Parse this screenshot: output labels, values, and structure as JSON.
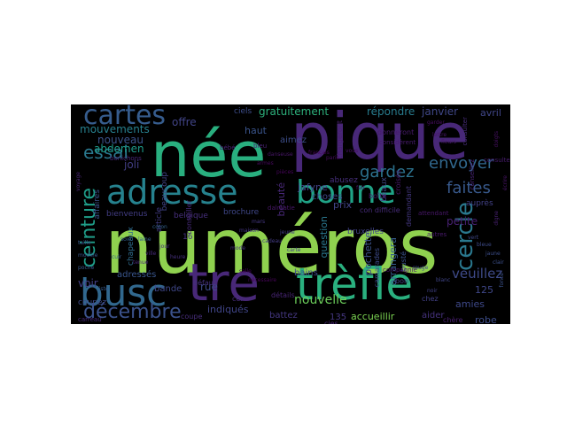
{
  "wordcloud": {
    "background": "#000000",
    "words": [
      {
        "text": "numéros",
        "color": "#8fd14f"
      },
      {
        "text": "née",
        "color": "#29af7f"
      },
      {
        "text": "pique",
        "color": "#482878"
      },
      {
        "text": "trèfle",
        "color": "#2ab07f"
      },
      {
        "text": "tre",
        "color": "#482878"
      },
      {
        "text": "adresse",
        "color": "#26828e"
      },
      {
        "text": "bonne",
        "color": "#20a386"
      },
      {
        "text": "busc",
        "color": "#31688e"
      },
      {
        "text": "cartes",
        "color": "#365c8d"
      },
      {
        "text": "ceinture",
        "color": "#1f9e89"
      },
      {
        "text": "cercle",
        "color": "#2a788e"
      },
      {
        "text": "décembre",
        "color": "#3b528b"
      },
      {
        "text": "essai",
        "color": "#2a788e"
      },
      {
        "text": "envoyer",
        "color": "#31688e"
      },
      {
        "text": "faites",
        "color": "#38598c"
      },
      {
        "text": "gardez",
        "color": "#2c728e"
      },
      {
        "text": "nouvelle",
        "color": "#6ccd5a"
      },
      {
        "text": "veuillez",
        "color": "#3e4a89"
      },
      {
        "text": "gratuitement",
        "color": "#2db27d"
      },
      {
        "text": "répondre",
        "color": "#287c8e"
      },
      {
        "text": "janvier",
        "color": "#3f4788"
      },
      {
        "text": "avril",
        "color": "#404688"
      },
      {
        "text": "mouvements",
        "color": "#27808e"
      },
      {
        "text": "nouveau",
        "color": "#3b528b"
      },
      {
        "text": "abdomen",
        "color": "#1e9b8a"
      },
      {
        "text": "joli",
        "color": "#433e85"
      },
      {
        "text": "offre",
        "color": "#414487"
      },
      {
        "text": "haut",
        "color": "#3a548c"
      },
      {
        "text": "aimez",
        "color": "#3d4e8a"
      },
      {
        "text": "ciels",
        "color": "#3d4d8a"
      },
      {
        "text": "jafyne",
        "color": "#424086"
      },
      {
        "text": "choses",
        "color": "#3f4889"
      },
      {
        "text": "prix",
        "color": "#414487"
      },
      {
        "text": "petite",
        "color": "#482173"
      },
      {
        "text": "question",
        "color": "#2a778e"
      },
      {
        "text": "pochette",
        "color": "#3b528b"
      },
      {
        "text": "arrangera",
        "color": "#365d8d"
      },
      {
        "text": "bains",
        "color": "#3d4e8a"
      },
      {
        "text": "rue",
        "color": "#3e4a89"
      },
      {
        "text": "bande",
        "color": "#3f4788"
      },
      {
        "text": "indiqués",
        "color": "#404588"
      },
      {
        "text": "battez",
        "color": "#453882"
      },
      {
        "text": "135",
        "color": "#453781"
      },
      {
        "text": "accueillir",
        "color": "#7ad151"
      },
      {
        "text": "aider",
        "color": "#46327e"
      },
      {
        "text": "robe",
        "color": "#3d4d8a"
      },
      {
        "text": "amies",
        "color": "#3e4989"
      },
      {
        "text": "125",
        "color": "#3f4788"
      },
      {
        "text": "beaux",
        "color": "#3f4788"
      },
      {
        "text": "beauté",
        "color": "#482878"
      },
      {
        "text": "beaucoup",
        "color": "#414487"
      },
      {
        "text": "bienvenus",
        "color": "#433e85"
      },
      {
        "text": "belgique",
        "color": "#472f7d"
      },
      {
        "text": "brochure",
        "color": "#3f4788"
      },
      {
        "text": "bruxelles",
        "color": "#414487"
      },
      {
        "text": "voir",
        "color": "#423f85"
      },
      {
        "text": "coupez",
        "color": "#3e4a89"
      },
      {
        "text": "adressés",
        "color": "#39558c"
      },
      {
        "text": "affaires",
        "color": "#3b528b"
      },
      {
        "text": "chapeaux",
        "color": "#2f6c8e"
      },
      {
        "text": "article",
        "color": "#433e85"
      },
      {
        "text": "16",
        "color": "#46337f"
      },
      {
        "text": "boîte",
        "color": "#48186a"
      },
      {
        "text": "demandant",
        "color": "#453882"
      },
      {
        "text": "croisés",
        "color": "#48186a"
      },
      {
        "text": "donneront",
        "color": "#481a6c"
      },
      {
        "text": "conseiller",
        "color": "#472a7a"
      },
      {
        "text": "considèrent",
        "color": "#481b6d"
      },
      {
        "text": "camarades",
        "color": "#3e4c8a"
      },
      {
        "text": "bon",
        "color": "#433e85"
      },
      {
        "text": "chez",
        "color": "#424186"
      },
      {
        "text": "auprès",
        "color": "#424186"
      },
      {
        "text": "busté",
        "color": "#3b528b"
      },
      {
        "text": "con difficile",
        "color": "#472c7a"
      },
      {
        "text": "dalmatie",
        "color": "#481769"
      },
      {
        "text": "défaut",
        "color": "#46327e"
      },
      {
        "text": "détails",
        "color": "#482575"
      },
      {
        "text": "cer",
        "color": "#472d7b"
      },
      {
        "text": "coupe",
        "color": "#472d7b"
      },
      {
        "text": "cies",
        "color": "#482576"
      },
      {
        "text": "carreau",
        "color": "#472a7a"
      },
      {
        "text": "bonichons",
        "color": "#482677"
      },
      {
        "text": "abusez",
        "color": "#472f7d"
      },
      {
        "text": "chargeront",
        "color": "#481d6f"
      },
      {
        "text": "chère",
        "color": "#481f70"
      },
      {
        "text": "consulter",
        "color": "#472c7a"
      },
      {
        "text": "conseillez",
        "color": "#482475"
      },
      {
        "text": "consultez",
        "color": "#481c6e"
      },
      {
        "text": "bébé",
        "color": "#482173"
      },
      {
        "text": "bleu",
        "color": "#482374"
      },
      {
        "text": "danseuse",
        "color": "#481668"
      },
      {
        "text": "compagnie",
        "color": "#481567"
      },
      {
        "text": "autres",
        "color": "#481a6c"
      },
      {
        "text": "attendant",
        "color": "#481769"
      },
      {
        "text": "doigts",
        "color": "#471063"
      },
      {
        "text": "écrire",
        "color": "#471365"
      },
      {
        "text": "garder",
        "color": "#470d60"
      },
      {
        "text": "armes",
        "color": "#46085c"
      },
      {
        "text": "pièces",
        "color": "#450559"
      },
      {
        "text": "salle",
        "color": "#44015b"
      },
      {
        "text": "nécessaire",
        "color": "#450457"
      },
      {
        "text": "français",
        "color": "#46075a"
      },
      {
        "text": "paris",
        "color": "#470d60"
      },
      {
        "text": "vous",
        "color": "#471063"
      },
      {
        "text": "fait",
        "color": "#481467"
      },
      {
        "text": "lettre",
        "color": "#481769"
      },
      {
        "text": "fleurs",
        "color": "#481a6c"
      },
      {
        "text": "digne",
        "color": "#482071"
      },
      {
        "text": "voyage",
        "color": "#482374"
      },
      {
        "text": "tenue",
        "color": "#482677"
      },
      {
        "text": "ville",
        "color": "#472a7a"
      },
      {
        "text": "jour",
        "color": "#472e7c"
      },
      {
        "text": "heure",
        "color": "#46307e"
      },
      {
        "text": "mode",
        "color": "#46337f"
      },
      {
        "text": "maison",
        "color": "#453581"
      },
      {
        "text": "mars",
        "color": "#453882"
      },
      {
        "text": "cadeau",
        "color": "#443b84"
      },
      {
        "text": "jeune",
        "color": "#433e85"
      },
      {
        "text": "carte",
        "color": "#424086"
      },
      {
        "text": "noir",
        "color": "#414287"
      },
      {
        "text": "blanc",
        "color": "#404588"
      },
      {
        "text": "rouge",
        "color": "#3f4788"
      },
      {
        "text": "vert",
        "color": "#3e4989"
      },
      {
        "text": "bleue",
        "color": "#3e4c8a"
      },
      {
        "text": "jaune",
        "color": "#3d4e8a"
      },
      {
        "text": "clair",
        "color": "#3c508b"
      },
      {
        "text": "foncé",
        "color": "#3b528b"
      },
      {
        "text": "taille",
        "color": "#3a548c"
      },
      {
        "text": "modèle",
        "color": "#39568c"
      },
      {
        "text": "poche",
        "color": "#38588c"
      },
      {
        "text": "liste",
        "color": "#375a8c"
      },
      {
        "text": "cuir",
        "color": "#365c8d"
      },
      {
        "text": "soie",
        "color": "#355e8d"
      },
      {
        "text": "laine",
        "color": "#34608d"
      },
      {
        "text": "coton",
        "color": "#33638d"
      }
    ]
  }
}
